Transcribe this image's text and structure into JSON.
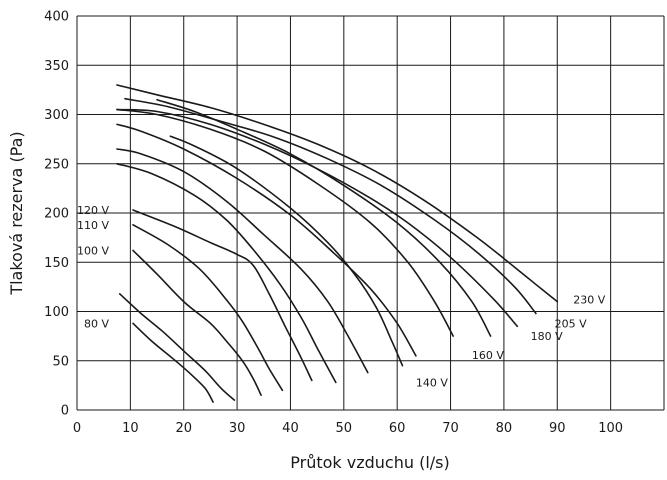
{
  "chart_data": {
    "type": "line",
    "title": "",
    "xlabel": "Průtok vzduchu (l/s)",
    "ylabel": "Tlaková rezerva (Pa)",
    "xlim": [
      0,
      110
    ],
    "ylim": [
      0,
      400
    ],
    "xticks": [
      "0",
      "10",
      "20",
      "30",
      "40",
      "50",
      "60",
      "70",
      "80",
      "90",
      "100"
    ],
    "yticks": [
      "0",
      "50",
      "100",
      "150",
      "200",
      "250",
      "300",
      "350",
      "400"
    ],
    "grid": true,
    "series": [
      {
        "name": "230 V",
        "x": [
          7.5,
          15,
          25,
          35,
          45,
          55,
          65,
          75,
          82,
          87,
          90
        ],
        "y": [
          330,
          320,
          307,
          290,
          270,
          245,
          213,
          175,
          145,
          123,
          110
        ]
      },
      {
        "name": "205 V",
        "x": [
          9,
          17,
          27,
          37,
          47,
          57,
          67,
          75,
          82,
          86
        ],
        "y": [
          316,
          308,
          293,
          277,
          255,
          228,
          193,
          160,
          125,
          98
        ]
      },
      {
        "name": "180 V",
        "x": [
          7.5,
          15,
          25,
          35,
          45,
          55,
          62,
          70,
          78,
          82.5
        ],
        "y": [
          305,
          303,
          290,
          270,
          245,
          215,
          190,
          155,
          113,
          85
        ]
      },
      {
        "name": "",
        "x": [
          15,
          22,
          30,
          40,
          50,
          60,
          68,
          74,
          77.5
        ],
        "y": [
          315,
          303,
          285,
          260,
          228,
          190,
          150,
          110,
          75
        ]
      },
      {
        "name": "160 V",
        "x": [
          7.5,
          15,
          25,
          35,
          45,
          55,
          62,
          67,
          70.5
        ],
        "y": [
          305,
          300,
          285,
          263,
          230,
          190,
          150,
          110,
          75
        ]
      },
      {
        "name": "",
        "x": [
          7.5,
          12,
          20,
          30,
          40,
          48,
          55,
          60,
          63.5
        ],
        "y": [
          290,
          283,
          265,
          235,
          198,
          160,
          123,
          88,
          55
        ]
      },
      {
        "name": "140 V",
        "x": [
          17.5,
          22,
          30,
          40,
          47,
          52,
          56,
          59,
          61
        ],
        "y": [
          278,
          268,
          245,
          205,
          170,
          138,
          105,
          70,
          45
        ]
      },
      {
        "name": "",
        "x": [
          7.5,
          12,
          20,
          28,
          35,
          42,
          47,
          51,
          54.5
        ],
        "y": [
          265,
          260,
          242,
          212,
          178,
          143,
          110,
          73,
          38
        ]
      },
      {
        "name": "",
        "x": [
          7.5,
          14,
          22,
          28,
          33,
          38,
          42,
          45,
          48.5
        ],
        "y": [
          250,
          240,
          218,
          193,
          163,
          128,
          94,
          63,
          28
        ]
      },
      {
        "name": "120 V",
        "x": [
          10.5,
          18,
          25,
          30,
          33,
          36,
          39,
          42,
          44
        ],
        "y": [
          203,
          187,
          170,
          158,
          147,
          118,
          85,
          53,
          30
        ]
      },
      {
        "name": "110 V",
        "x": [
          10.5,
          17,
          23,
          28,
          31,
          34,
          36,
          38.5
        ],
        "y": [
          188,
          168,
          143,
          112,
          90,
          62,
          42,
          20
        ]
      },
      {
        "name": "100 V",
        "x": [
          10.5,
          15,
          20,
          25,
          28,
          31,
          33,
          34.5
        ],
        "y": [
          162,
          138,
          110,
          88,
          70,
          50,
          32,
          15
        ]
      },
      {
        "name": "",
        "x": [
          8,
          12,
          16,
          20,
          24,
          27,
          29.5
        ],
        "y": [
          118,
          98,
          80,
          60,
          40,
          22,
          10
        ]
      },
      {
        "name": "80 V",
        "x": [
          10.5,
          14,
          18,
          21,
          24,
          25.5
        ],
        "y": [
          88,
          70,
          52,
          38,
          22,
          8
        ]
      }
    ],
    "labels": [
      {
        "text": "230 V",
        "x": 93,
        "y": 112
      },
      {
        "text": "205 V",
        "x": 89.5,
        "y": 88
      },
      {
        "text": "180 V",
        "x": 85,
        "y": 75
      },
      {
        "text": "160 V",
        "x": 74,
        "y": 56
      },
      {
        "text": "140 V",
        "x": 63.5,
        "y": 28
      },
      {
        "text": "120 V",
        "x": 6,
        "y": 203
      },
      {
        "text": "110 V",
        "x": 6,
        "y": 188
      },
      {
        "text": "100 V",
        "x": 6,
        "y": 162
      },
      {
        "text": "80 V",
        "x": 6,
        "y": 88
      }
    ]
  }
}
